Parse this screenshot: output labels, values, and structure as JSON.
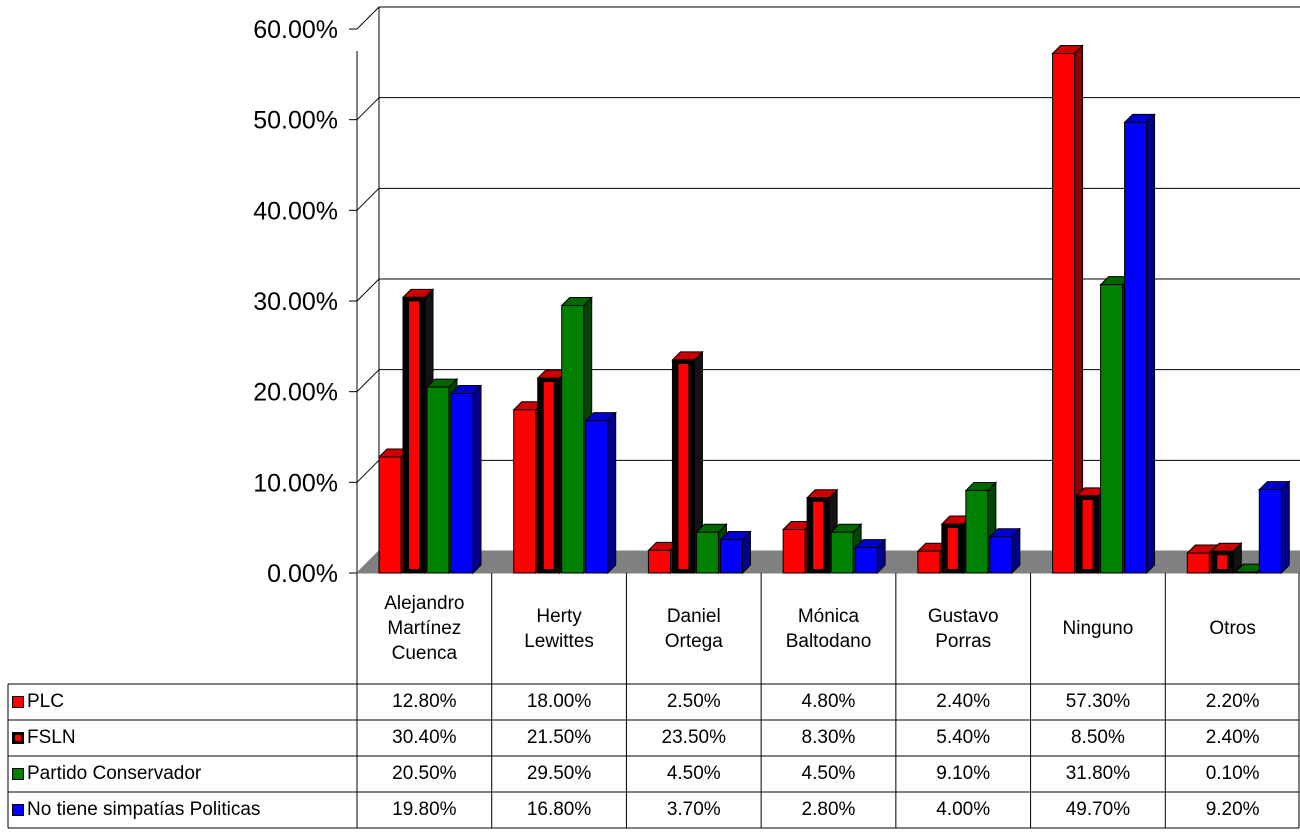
{
  "chart_data": {
    "type": "bar",
    "title": "",
    "xlabel": "",
    "ylabel": "",
    "ylim": [
      0,
      60
    ],
    "yticks": [
      "0.00%",
      "10.00%",
      "20.00%",
      "30.00%",
      "40.00%",
      "50.00%",
      "60.00%"
    ],
    "grid": true,
    "legend_placement": "data-table-left",
    "categories": [
      "Alejandro\nMartínez\nCuenca",
      "Herty\nLewittes",
      "Daniel\nOrtega",
      "Mónica\nBaltodano",
      "Gustavo\nPorras",
      "Ninguno",
      "Otros"
    ],
    "series": [
      {
        "name": "PLC",
        "color": "#ff0000",
        "values": [
          12.8,
          18.0,
          2.5,
          4.8,
          2.4,
          57.3,
          2.2
        ],
        "labels": [
          "12.80%",
          "18.00%",
          "2.50%",
          "4.80%",
          "2.40%",
          "57.30%",
          "2.20%"
        ]
      },
      {
        "name": "FSLN",
        "color": "#000000",
        "inner_color": "#ff0000",
        "values": [
          30.4,
          21.5,
          23.5,
          8.3,
          5.4,
          8.5,
          2.4
        ],
        "labels": [
          "30.40%",
          "21.50%",
          "23.50%",
          "8.30%",
          "5.40%",
          "8.50%",
          "2.40%"
        ]
      },
      {
        "name": "Partido Conservador",
        "color": "#008000",
        "values": [
          20.5,
          29.5,
          4.5,
          4.5,
          9.1,
          31.8,
          0.1
        ],
        "labels": [
          "20.50%",
          "29.50%",
          "4.50%",
          "4.50%",
          "9.10%",
          "31.80%",
          "0.10%"
        ]
      },
      {
        "name": "No tiene simpatías Politicas",
        "color": "#0000ff",
        "values": [
          19.8,
          16.8,
          3.7,
          2.8,
          4.0,
          49.7,
          9.2
        ],
        "labels": [
          "19.80%",
          "16.80%",
          "3.70%",
          "2.80%",
          "4.00%",
          "49.70%",
          "9.20%"
        ]
      }
    ]
  }
}
